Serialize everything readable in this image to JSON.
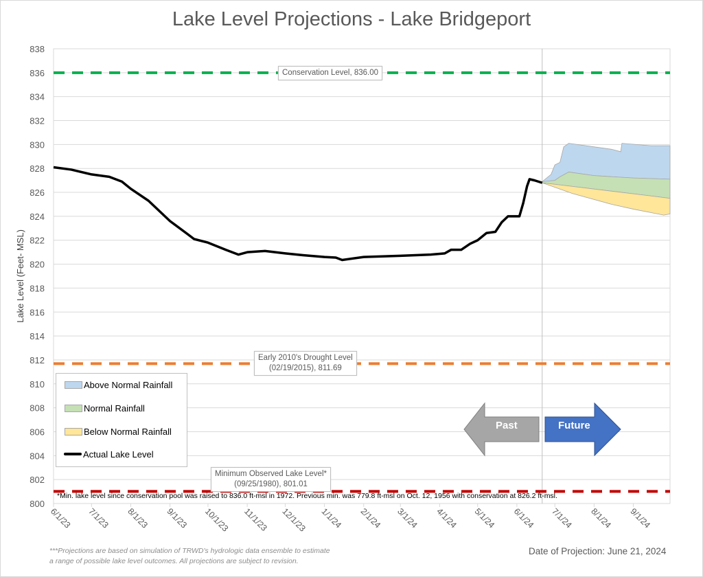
{
  "title": "Lake Level Projections - Lake Bridgeport",
  "chart_data": {
    "type": "area",
    "title": "Lake Level Projections - Lake Bridgeport",
    "ylabel": "Lake Level (Feet- MSL)",
    "xlabel": "",
    "ylim": [
      800,
      838
    ],
    "yticks": [
      800,
      802,
      804,
      806,
      808,
      810,
      812,
      814,
      816,
      818,
      820,
      822,
      824,
      826,
      828,
      830,
      832,
      834,
      836,
      838
    ],
    "xlim": [
      "2023-06-01",
      "2024-09-30"
    ],
    "xtick_labels": [
      "6/1/23",
      "7/1/23",
      "8/1/23",
      "9/1/23",
      "10/1/23",
      "11/1/23",
      "12/1/23",
      "1/1/24",
      "2/1/24",
      "3/1/24",
      "4/1/24",
      "5/1/24",
      "6/1/24",
      "7/1/24",
      "8/1/24",
      "9/1/24"
    ],
    "xtick_dates": [
      "2023-06-01",
      "2023-07-01",
      "2023-08-01",
      "2023-09-01",
      "2023-10-01",
      "2023-11-01",
      "2023-12-01",
      "2024-01-01",
      "2024-02-01",
      "2024-03-01",
      "2024-04-01",
      "2024-05-01",
      "2024-06-01",
      "2024-07-01",
      "2024-08-01",
      "2024-09-01"
    ],
    "grid": true,
    "projection_date": "2024-06-21",
    "reference_lines": [
      {
        "label": "Conservation Level, 836.00",
        "value": 836.0,
        "color": "#00b050"
      },
      {
        "label": "Early 2010's Drought Level\n(02/19/2015), 811.69",
        "value": 811.69,
        "color": "#ed7d31"
      },
      {
        "label": "Minimum Observed Lake Level*\n(09/25/1980), 801.01",
        "value": 801.01,
        "color": "#c00000"
      }
    ],
    "actual": {
      "name": "Actual Lake Level",
      "color": "#000000",
      "points": [
        [
          "2023-06-01",
          828.1
        ],
        [
          "2023-06-15",
          827.9
        ],
        [
          "2023-07-01",
          827.5
        ],
        [
          "2023-07-15",
          827.3
        ],
        [
          "2023-07-25",
          826.9
        ],
        [
          "2023-08-01",
          826.3
        ],
        [
          "2023-08-15",
          825.3
        ],
        [
          "2023-09-01",
          823.6
        ],
        [
          "2023-09-15",
          822.5
        ],
        [
          "2023-09-20",
          822.1
        ],
        [
          "2023-10-01",
          821.8
        ],
        [
          "2023-10-15",
          821.2
        ],
        [
          "2023-10-25",
          820.8
        ],
        [
          "2023-11-01",
          821.0
        ],
        [
          "2023-11-15",
          821.1
        ],
        [
          "2023-12-01",
          820.9
        ],
        [
          "2023-12-15",
          820.75
        ],
        [
          "2024-01-01",
          820.6
        ],
        [
          "2024-01-10",
          820.55
        ],
        [
          "2024-01-15",
          820.35
        ],
        [
          "2024-02-01",
          820.6
        ],
        [
          "2024-03-01",
          820.7
        ],
        [
          "2024-03-25",
          820.8
        ],
        [
          "2024-04-05",
          820.9
        ],
        [
          "2024-04-10",
          821.2
        ],
        [
          "2024-04-18",
          821.2
        ],
        [
          "2024-04-25",
          821.7
        ],
        [
          "2024-05-01",
          822.0
        ],
        [
          "2024-05-08",
          822.6
        ],
        [
          "2024-05-15",
          822.7
        ],
        [
          "2024-05-20",
          823.5
        ],
        [
          "2024-05-25",
          824.0
        ],
        [
          "2024-06-03",
          824.0
        ],
        [
          "2024-06-06",
          825.1
        ],
        [
          "2024-06-09",
          826.5
        ],
        [
          "2024-06-11",
          827.1
        ],
        [
          "2024-06-15",
          827.0
        ],
        [
          "2024-06-21",
          826.8
        ]
      ]
    },
    "bands": [
      {
        "name": "Above Normal Rainfall",
        "color": "#bdd7ee",
        "upper": [
          [
            "2024-06-21",
            826.9
          ],
          [
            "2024-06-28",
            827.5
          ],
          [
            "2024-07-01",
            828.3
          ],
          [
            "2024-07-05",
            828.5
          ],
          [
            "2024-07-08",
            829.8
          ],
          [
            "2024-07-12",
            830.1
          ],
          [
            "2024-08-15",
            829.6
          ],
          [
            "2024-08-22",
            829.4
          ],
          [
            "2024-08-23",
            830.1
          ],
          [
            "2024-09-15",
            829.9
          ],
          [
            "2024-09-30",
            829.9
          ]
        ],
        "lower": [
          [
            "2024-06-21",
            826.9
          ],
          [
            "2024-07-01",
            827.0
          ],
          [
            "2024-07-05",
            827.3
          ],
          [
            "2024-07-12",
            827.7
          ],
          [
            "2024-08-01",
            827.4
          ],
          [
            "2024-09-01",
            827.2
          ],
          [
            "2024-09-30",
            827.1
          ]
        ]
      },
      {
        "name": "Normal Rainfall",
        "color": "#c5e0b4",
        "upper": [
          [
            "2024-06-21",
            826.9
          ],
          [
            "2024-07-01",
            827.0
          ],
          [
            "2024-07-05",
            827.3
          ],
          [
            "2024-07-12",
            827.7
          ],
          [
            "2024-08-01",
            827.4
          ],
          [
            "2024-09-01",
            827.2
          ],
          [
            "2024-09-30",
            827.1
          ]
        ],
        "lower": [
          [
            "2024-06-21",
            826.8
          ],
          [
            "2024-07-15",
            826.5
          ],
          [
            "2024-08-15",
            826.1
          ],
          [
            "2024-09-15",
            825.7
          ],
          [
            "2024-09-30",
            825.5
          ]
        ]
      },
      {
        "name": "Below Normal Rainfall",
        "color": "#ffe699",
        "upper": [
          [
            "2024-06-21",
            826.8
          ],
          [
            "2024-07-15",
            826.5
          ],
          [
            "2024-08-15",
            826.1
          ],
          [
            "2024-09-15",
            825.7
          ],
          [
            "2024-09-30",
            825.5
          ]
        ],
        "lower": [
          [
            "2024-06-21",
            826.8
          ],
          [
            "2024-07-15",
            825.9
          ],
          [
            "2024-08-15",
            825.0
          ],
          [
            "2024-09-01",
            824.6
          ],
          [
            "2024-09-25",
            824.1
          ],
          [
            "2024-09-30",
            824.2
          ]
        ]
      }
    ],
    "legend": [
      "Above Normal Rainfall",
      "Normal Rainfall",
      "Below Normal Rainfall",
      "Actual Lake Level"
    ],
    "legend_position": "bottom-left",
    "arrows": [
      {
        "label": "Past",
        "color": "#a6a6a6",
        "direction": "left"
      },
      {
        "label": "Future",
        "color": "#4472c4",
        "direction": "right"
      }
    ]
  },
  "footnote": "*Min. lake level since conservation pool was raised to 836.0 ft-msl in 1972.  Previous min. was 779.8 ft-msl on Oct. 12, 1956 with conservation at 826.2 ft-msl.",
  "note_line1": "***Projections are based on simulation of TRWD's hydrologic data ensemble to estimate",
  "note_line2": "a range of possible lake level outcomes.  All projections are subject to revision.",
  "date_of_projection": "Date of Projection: June 21, 2024"
}
